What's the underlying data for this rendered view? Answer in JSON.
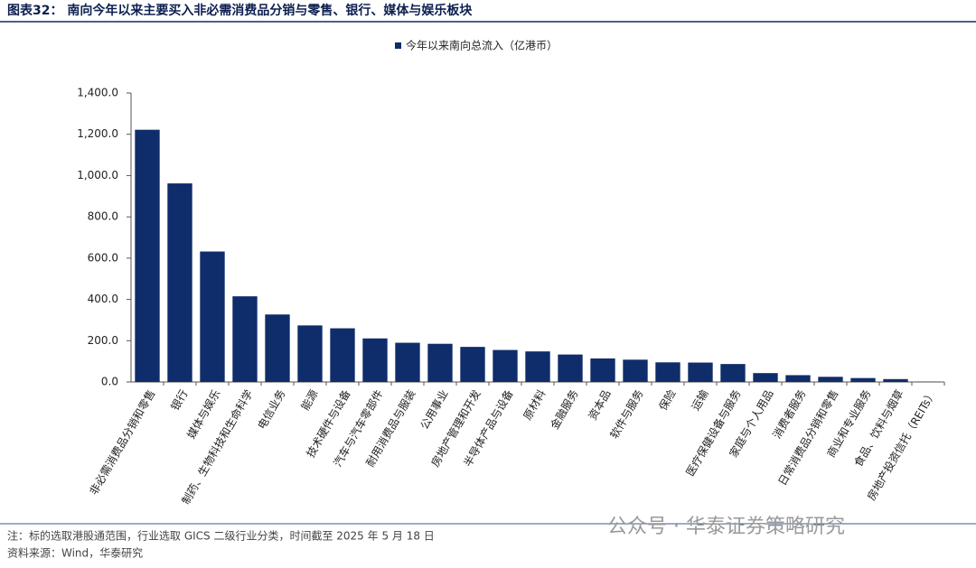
{
  "chart_data": {
    "type": "bar",
    "title": "图表32： 南向今年以来主要买入非必需消费品分销与零售、银行、媒体与娱乐板块",
    "legend": "今年以来南向总流入（亿港币）",
    "color": "#0f2d6b",
    "categories": [
      "非必需消费品分销和零售",
      "银行",
      "媒体与娱乐",
      "制药、生物科技和生命科学",
      "电信业务",
      "能源",
      "技术硬件与设备",
      "汽车与汽车零部件",
      "耐用消费品与服装",
      "公用事业",
      "房地产管理和开发",
      "半导体产品与设备",
      "原材料",
      "金融服务",
      "资本品",
      "软件与服务",
      "保险",
      "运输",
      "医疗保健设备与服务",
      "家庭与个人用品",
      "消费者服务",
      "日常消费品分销和零售",
      "商业和专业服务",
      "食品、饮料与烟草",
      "房地产投资信托（REITs）"
    ],
    "values": [
      1222,
      962,
      632,
      415,
      327,
      274,
      260,
      211,
      190,
      185,
      170,
      155,
      148,
      133,
      114,
      108,
      95,
      94,
      87,
      43,
      33,
      25,
      19,
      14,
      1
    ],
    "ylim": [
      0,
      1400
    ],
    "yticks": [
      {
        "value": 0,
        "label": "0.0"
      },
      {
        "value": 200,
        "label": "200.0"
      },
      {
        "value": 400,
        "label": "400.0"
      },
      {
        "value": 600,
        "label": "600.0"
      },
      {
        "value": 800,
        "label": "800.0"
      },
      {
        "value": 1000,
        "label": "1,000.0"
      },
      {
        "value": 1200,
        "label": "1,200.0"
      },
      {
        "value": 1400,
        "label": "1,400.0"
      }
    ],
    "notes": [
      "注：标的选取港股通范围，行业选取 GICS 二级行业分类，时间截至 2025 年 5 月 18 日",
      "资料来源：Wind，华泰研究"
    ],
    "watermark": "公众号 · 华泰证券策略研究"
  }
}
